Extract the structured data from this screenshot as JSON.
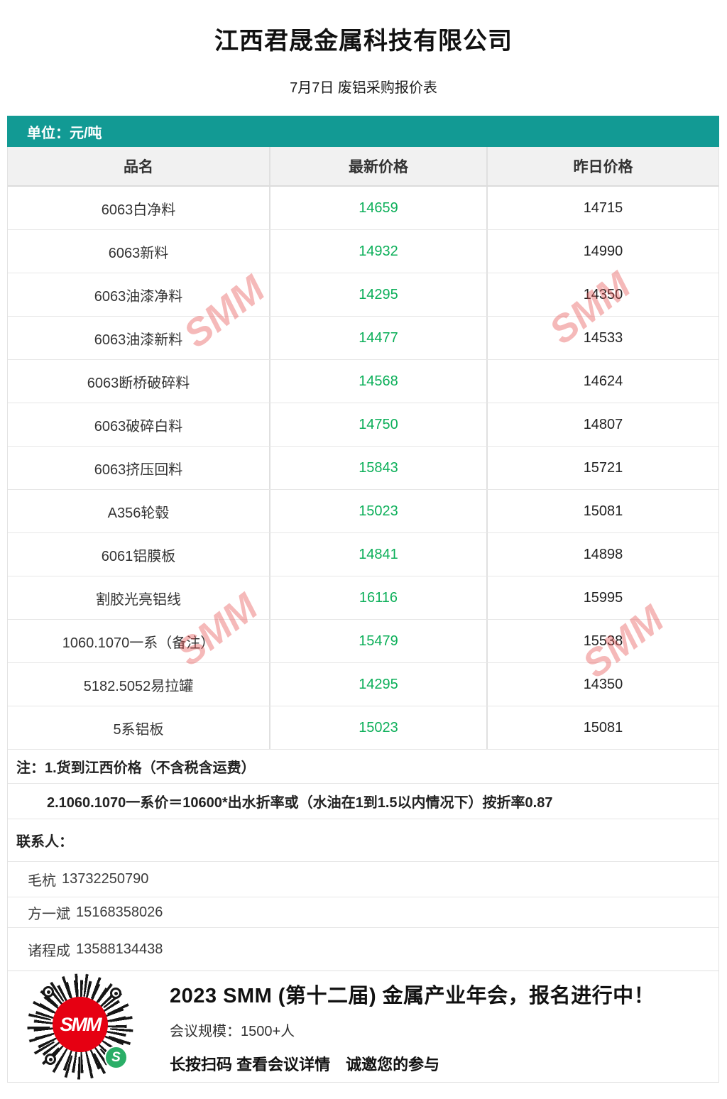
{
  "header": {
    "company": "江西君晟金属科技有限公司",
    "subtitle": "7月7日 废铝采购报价表"
  },
  "table": {
    "unit_label": "单位：元/吨",
    "columns": {
      "name": "品名",
      "latest": "最新价格",
      "yesterday": "昨日价格"
    },
    "rows": [
      {
        "name": "6063白净料",
        "latest": "14659",
        "yesterday": "14715"
      },
      {
        "name": "6063新料",
        "latest": "14932",
        "yesterday": "14990"
      },
      {
        "name": "6063油漆净料",
        "latest": "14295",
        "yesterday": "14350"
      },
      {
        "name": "6063油漆新料",
        "latest": "14477",
        "yesterday": "14533"
      },
      {
        "name": "6063断桥破碎料",
        "latest": "14568",
        "yesterday": "14624"
      },
      {
        "name": "6063破碎白料",
        "latest": "14750",
        "yesterday": "14807"
      },
      {
        "name": "6063挤压回料",
        "latest": "15843",
        "yesterday": "15721"
      },
      {
        "name": "A356轮毂",
        "latest": "15023",
        "yesterday": "15081"
      },
      {
        "name": "6061铝膜板",
        "latest": "14841",
        "yesterday": "14898"
      },
      {
        "name": "割胶光亮铝线",
        "latest": "16116",
        "yesterday": "15995"
      },
      {
        "name": "1060.1070一系（备注）",
        "latest": "15479",
        "yesterday": "15538"
      },
      {
        "name": "5182.5052易拉罐",
        "latest": "14295",
        "yesterday": "14350"
      },
      {
        "name": "5系铝板",
        "latest": "15023",
        "yesterday": "15081"
      }
    ]
  },
  "notes": {
    "line1": "注：1.货到江西价格（不含税含运费）",
    "line2": "2.1060.1070一系价＝10600*出水折率或（水油在1到1.5以内情况下）按折率0.87"
  },
  "contacts": {
    "header": "联系人：",
    "people": [
      {
        "name": "毛杭",
        "phone": "13732250790"
      },
      {
        "name": "方一斌",
        "phone": "15168358026"
      },
      {
        "name": "诸程成",
        "phone": "13588134438"
      }
    ]
  },
  "footer": {
    "headline": "2023 SMM (第十二届) 金属产业年会，报名进行中！",
    "scale_line": "会议规模：1500+人",
    "cta_line": "长按扫码 查看会议详情　诚邀您的参与",
    "qr_logo_text": "SMM",
    "wechat_icon_glyph": "S"
  },
  "watermark": {
    "text": "SMM"
  },
  "colors": {
    "teal_bar": "#129a94",
    "latest_price_green": "#0caf59",
    "header_row_bg": "#f1f1f1",
    "watermark_pink": "rgba(230,80,80,0.40)",
    "smm_logo_red": "#e60012",
    "wechat_green": "#2aae67"
  }
}
